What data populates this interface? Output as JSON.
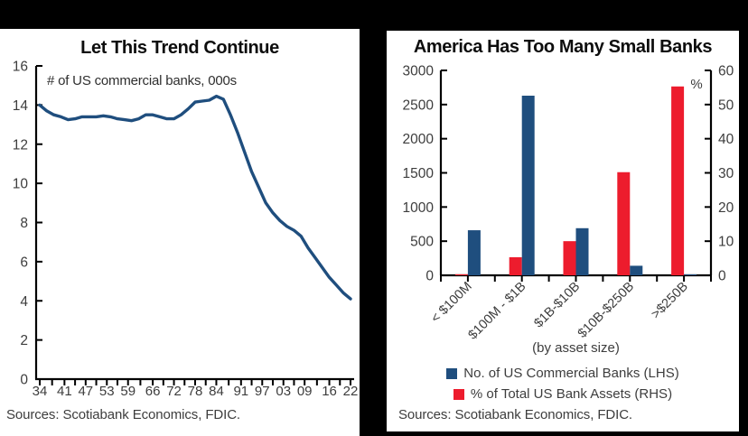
{
  "chart_data": [
    {
      "type": "line",
      "title": "Let This Trend Continue",
      "annotation": "# of US commercial banks, 000s",
      "sources": "Sources: Scotiabank Economics, FDIC.",
      "line_color": "#1F4E7E",
      "xlim": [
        1934,
        2022
      ],
      "ylim": [
        0,
        16
      ],
      "yticks": [
        0,
        2,
        4,
        6,
        8,
        10,
        12,
        14,
        16
      ],
      "xtick_years": [
        1934,
        1941,
        1947,
        1953,
        1959,
        1966,
        1972,
        1978,
        1984,
        1991,
        1997,
        2003,
        2009,
        2016,
        2022
      ],
      "xtick_labels": [
        "34",
        "41",
        "47",
        "53",
        "59",
        "66",
        "72",
        "78",
        "84",
        "91",
        "97",
        "03",
        "09",
        "16",
        "22"
      ],
      "x": [
        1934,
        1936,
        1938,
        1940,
        1942,
        1944,
        1946,
        1948,
        1950,
        1952,
        1954,
        1956,
        1958,
        1960,
        1962,
        1964,
        1966,
        1968,
        1970,
        1972,
        1974,
        1976,
        1978,
        1980,
        1982,
        1984,
        1986,
        1988,
        1990,
        1992,
        1994,
        1996,
        1998,
        2000,
        2002,
        2004,
        2006,
        2008,
        2010,
        2012,
        2014,
        2016,
        2018,
        2020,
        2022
      ],
      "values": [
        14.0,
        13.7,
        13.5,
        13.4,
        13.25,
        13.3,
        13.4,
        13.4,
        13.4,
        13.45,
        13.4,
        13.3,
        13.25,
        13.2,
        13.3,
        13.5,
        13.5,
        13.4,
        13.3,
        13.3,
        13.5,
        13.8,
        14.15,
        14.2,
        14.25,
        14.45,
        14.3,
        13.5,
        12.6,
        11.6,
        10.6,
        9.8,
        9.0,
        8.5,
        8.1,
        7.8,
        7.6,
        7.3,
        6.7,
        6.2,
        5.7,
        5.2,
        4.8,
        4.4,
        4.1
      ]
    },
    {
      "type": "bar",
      "title": "America Has Too Many Small Banks",
      "categories": [
        "< $100M",
        "$100M - $1B",
        "$1B-$10B",
        "$10B-$250B",
        ">$250B"
      ],
      "series": [
        {
          "name": "No. of US Commercial Banks (LHS)",
          "axis": "left",
          "color": "#1F4E7E",
          "values": [
            660,
            2630,
            690,
            140,
            14
          ]
        },
        {
          "name": "% of Total US Bank Assets (RHS)",
          "axis": "right",
          "color": "#ED1C2D",
          "values": [
            0.3,
            5.3,
            10,
            30.2,
            55.3
          ]
        }
      ],
      "bar_order_in_group": [
        "% of Total US Bank Assets (RHS)",
        "No. of US Commercial Banks (LHS)"
      ],
      "left_ylim": [
        0,
        3000
      ],
      "left_yticks": [
        0,
        500,
        1000,
        1500,
        2000,
        2500,
        3000
      ],
      "right_ylim": [
        0,
        60
      ],
      "right_yticks": [
        0,
        10,
        20,
        30,
        40,
        50,
        60
      ],
      "right_axis_unit": "%",
      "xlabel": "(by asset size)",
      "legend_position": "bottom",
      "sources": "Sources: Scotiabank Economics, FDIC.",
      "grid": "off"
    }
  ],
  "colors": {
    "background": "#000000",
    "panel": "#ffffff",
    "axis": "#000000",
    "tick_text": "#3d3d3d",
    "title_text": "#0d0d0d",
    "blue": "#1F4E7E",
    "red": "#ED1C2D"
  }
}
